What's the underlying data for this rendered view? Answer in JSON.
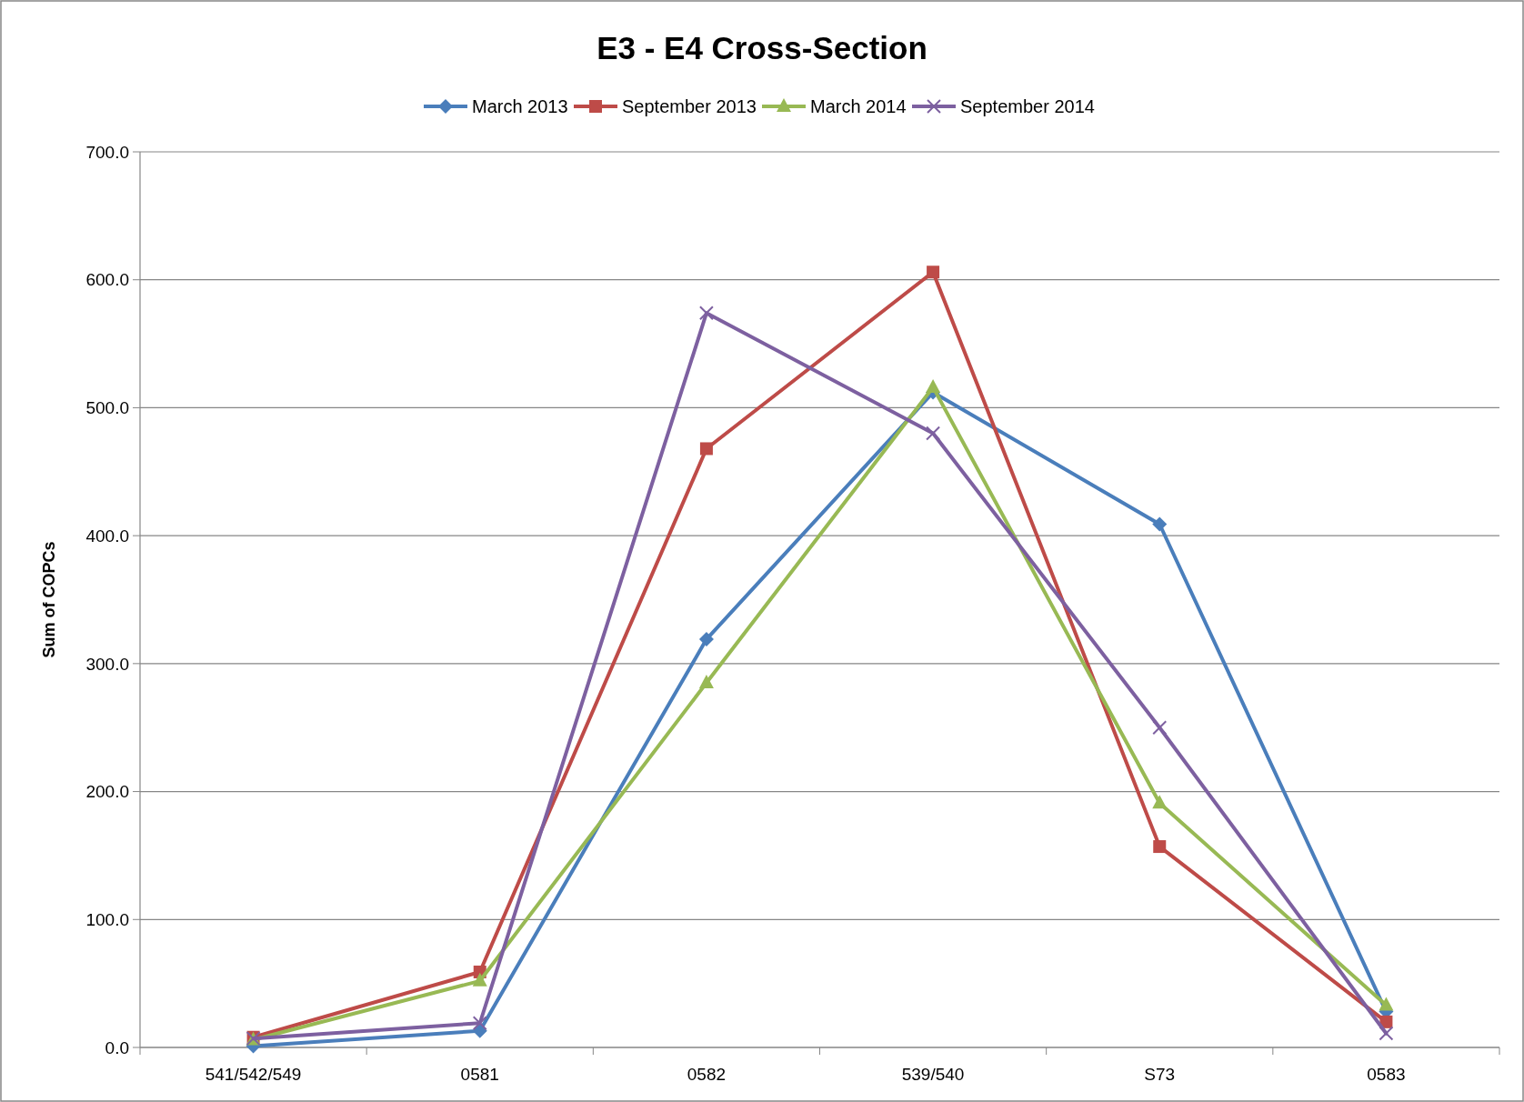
{
  "chart_data": {
    "type": "line",
    "title": "E3 - E4  Cross-Section",
    "ylabel": "Sum of COPCs",
    "categories": [
      "541/542/549",
      "0581",
      "0582",
      "539/540",
      "S73",
      "0583"
    ],
    "series": [
      {
        "name": "March 2013",
        "color": "#4a7ebb",
        "marker": "diamond",
        "values": [
          1,
          13,
          319,
          512,
          409,
          28
        ]
      },
      {
        "name": "September 2013",
        "color": "#be4b48",
        "marker": "square",
        "values": [
          8,
          59,
          468,
          606,
          157,
          20
        ]
      },
      {
        "name": "March 2014",
        "color": "#98b954",
        "marker": "triangle",
        "values": [
          6,
          52,
          285,
          516,
          191,
          33
        ]
      },
      {
        "name": "September 2014",
        "color": "#7d60a0",
        "marker": "cross",
        "values": [
          7,
          19,
          574,
          480,
          250,
          11
        ]
      }
    ],
    "ylim": [
      0,
      700
    ],
    "yticks": [
      {
        "value": 0,
        "label": "0.0"
      },
      {
        "value": 100,
        "label": "100.0"
      },
      {
        "value": 200,
        "label": "200.0"
      },
      {
        "value": 300,
        "label": "300.0"
      },
      {
        "value": 400,
        "label": "400.0"
      },
      {
        "value": 500,
        "label": "500.0"
      },
      {
        "value": 600,
        "label": "600.0"
      },
      {
        "value": 700,
        "label": "700.0"
      }
    ],
    "grid": "y",
    "legend": "top",
    "line_style": "solid"
  }
}
